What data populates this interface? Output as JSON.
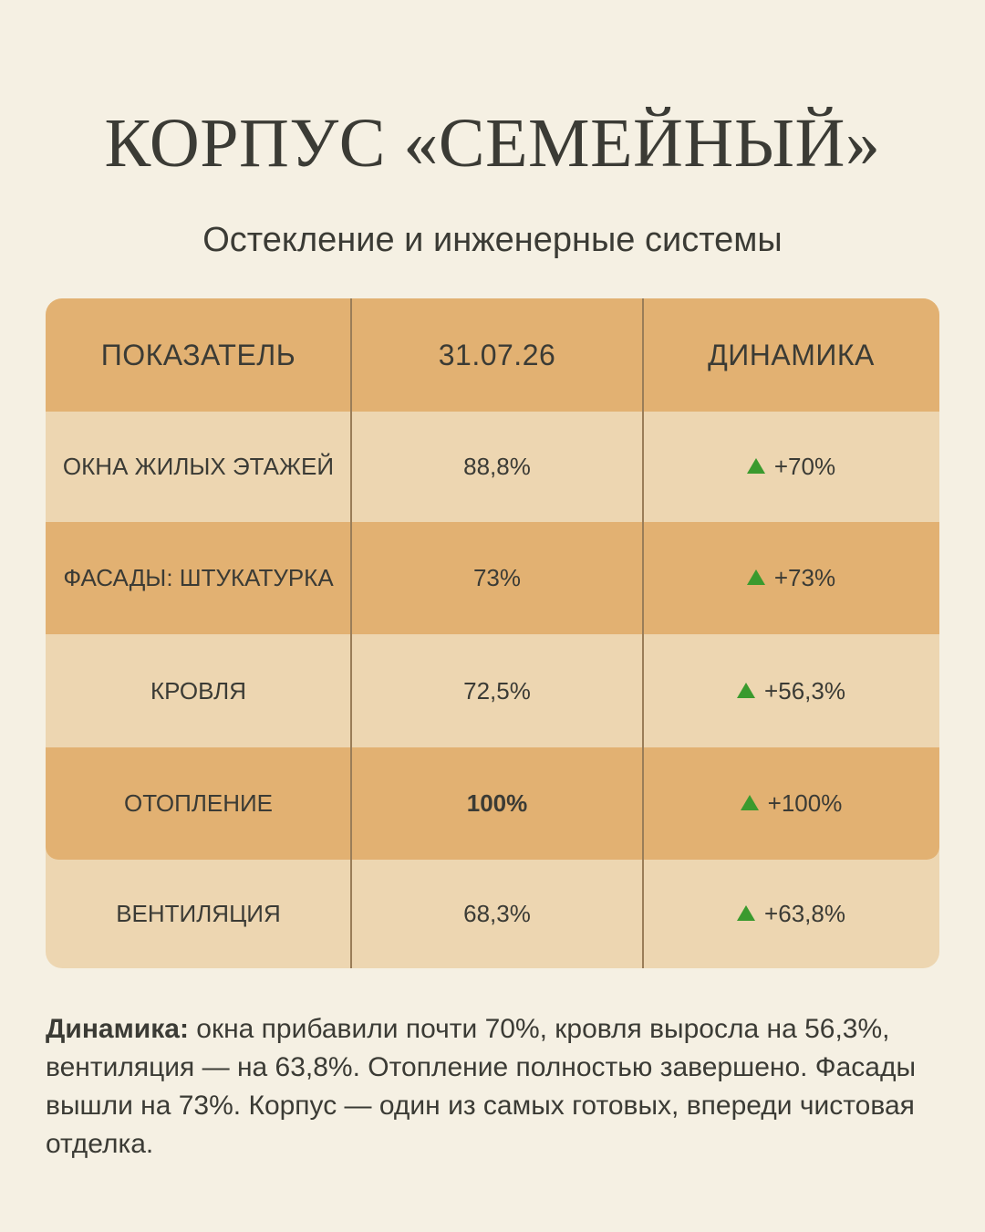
{
  "title": "КОРПУС «СЕМЕЙНЫЙ»",
  "subtitle": "Остекление и инженерные системы",
  "table": {
    "headers": [
      "ПОКАЗАТЕЛЬ",
      "31.07.26",
      "ДИНАМИКА"
    ],
    "rows": [
      {
        "name": "ОКНА ЖИЛЫХ ЭТАЖЕЙ",
        "value": "88,8%",
        "delta": "+70%"
      },
      {
        "name": "ФАСАДЫ: ШТУКАТУРКА",
        "value": "73%",
        "delta": "+73%"
      },
      {
        "name": "КРОВЛЯ",
        "value": "72,5%",
        "delta": "+56,3%"
      },
      {
        "name": "ОТОПЛЕНИЕ",
        "value": "100%",
        "delta": "+100%"
      },
      {
        "name": "ВЕНТИЛЯЦИЯ",
        "value": "68,3%",
        "delta": "+63,8%"
      }
    ]
  },
  "note": {
    "label": "Динамика:",
    "text": " окна прибавили почти 70%, кровля выросла на 56,3%, вентиляция — на 63,8%. Отопление полностью завершено. Фасады вышли на 73%. Корпус — один из самых готовых, впереди чистовая отделка."
  },
  "colors": {
    "background": "#f5f0e3",
    "row_dark": "#e2b172",
    "row_light": "#edd6b1",
    "up_arrow": "#3a9a2e"
  },
  "icons": {
    "delta": "triangle-up-icon"
  }
}
